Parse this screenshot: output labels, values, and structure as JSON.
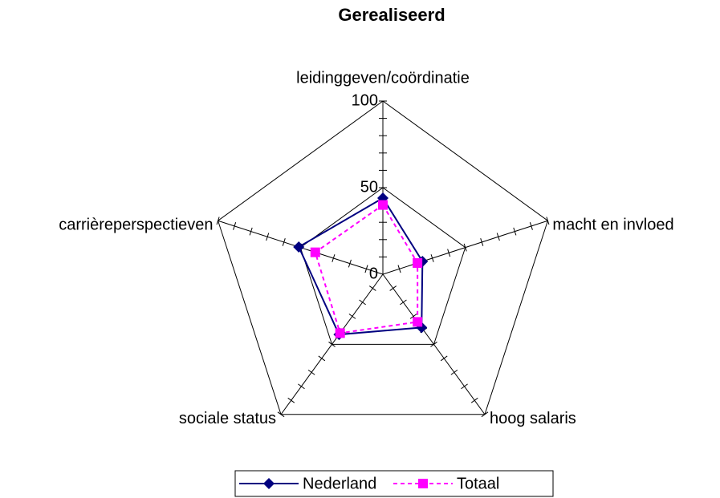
{
  "chart_data": {
    "type": "radar",
    "title": "Gerealiseerd",
    "categories": [
      "leidinggeven/coördinatie",
      "macht en invloed",
      "hoog salaris",
      "sociale status",
      "carrièreperspectieven"
    ],
    "series": [
      {
        "name": "Nederland",
        "color": "#000080",
        "marker": "diamond",
        "dash": "solid",
        "values": [
          44,
          24,
          38,
          43,
          51
        ]
      },
      {
        "name": "Totaal",
        "color": "#ff00ff",
        "marker": "square",
        "dash": "dashed",
        "values": [
          40,
          21,
          34,
          42,
          41
        ]
      }
    ],
    "ylim": [
      0,
      100
    ],
    "yticks": [
      0,
      50,
      100
    ],
    "minor_ticks": [
      10,
      20,
      30,
      40,
      50,
      60,
      70,
      80,
      90,
      100
    ],
    "legend": "bottom"
  }
}
